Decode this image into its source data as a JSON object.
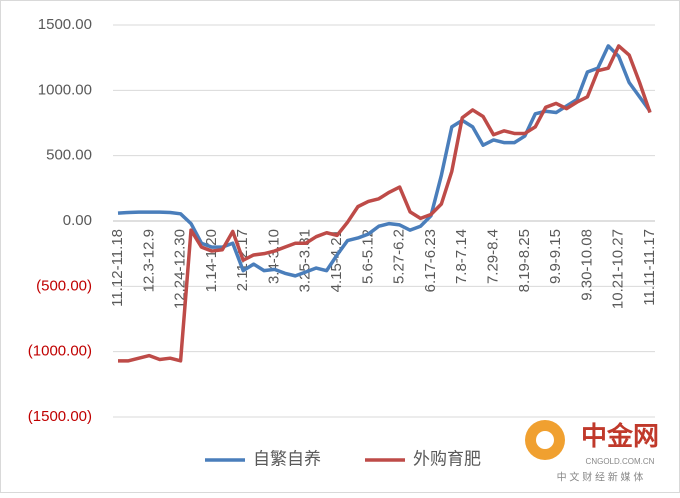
{
  "chart_data": {
    "type": "line",
    "categories": [
      "11.12-11.18",
      null,
      null,
      "12.3-12.9",
      null,
      null,
      "12.24-12.30",
      null,
      null,
      "1.14-1.20",
      null,
      null,
      "2.11-2.17",
      null,
      null,
      "3.4-3.10",
      null,
      null,
      "3.25-3.31",
      null,
      null,
      "4.15-4.21",
      null,
      null,
      "5.6-5.12",
      null,
      null,
      "5.27-6.2",
      null,
      null,
      "6.17-6.23",
      null,
      null,
      "7.8-7.14",
      null,
      null,
      "7.29-8.4",
      null,
      null,
      "8.19-8.25",
      null,
      null,
      "9.9-9.15",
      null,
      null,
      "9.30-10.08",
      null,
      null,
      "10.21-10.27",
      null,
      null,
      "11.11-11.17"
    ],
    "series": [
      {
        "name": "自繁自养",
        "color": "#4a7ebb",
        "values": [
          60,
          65,
          68,
          68,
          68,
          65,
          55,
          -20,
          -170,
          -200,
          -200,
          -170,
          -380,
          -330,
          -380,
          -370,
          -400,
          -420,
          -390,
          -360,
          -380,
          -260,
          -150,
          -130,
          -100,
          -40,
          -20,
          -30,
          -70,
          -40,
          40,
          350,
          720,
          770,
          720,
          580,
          620,
          600,
          600,
          650,
          820,
          840,
          830,
          880,
          930,
          1140,
          1170,
          1340,
          1260,
          1060,
          950,
          840
        ]
      },
      {
        "name": "外购育肥",
        "color": "#be4b48",
        "values": [
          -1070,
          -1070,
          -1050,
          -1030,
          -1060,
          -1050,
          -1070,
          -70,
          -200,
          -230,
          -220,
          -80,
          -300,
          -260,
          -250,
          -230,
          -200,
          -170,
          -170,
          -120,
          -90,
          -110,
          -10,
          110,
          150,
          170,
          220,
          260,
          70,
          20,
          50,
          130,
          380,
          790,
          850,
          800,
          660,
          690,
          670,
          670,
          720,
          870,
          900,
          860,
          910,
          950,
          1150,
          1170,
          1340,
          1270,
          1060,
          830
        ]
      }
    ],
    "ylim": [
      -1500,
      1500
    ],
    "yticks": [
      {
        "value": -1500,
        "label": "(1500.00)"
      },
      {
        "value": -1000,
        "label": "(1000.00)"
      },
      {
        "value": -500,
        "label": "(500.00)"
      },
      {
        "value": 0,
        "label": "0.00"
      },
      {
        "value": 500,
        "label": "500.00"
      },
      {
        "value": 1000,
        "label": "1000.00"
      },
      {
        "value": 1500,
        "label": "1500.00"
      }
    ],
    "grid": true,
    "negative_tick_color": "#c00000",
    "legend_position": "bottom"
  },
  "watermark": {
    "brand": "中金网",
    "domain": "CNGOLD.COM.CN",
    "slogan": "中 文 财 经 新 媒 体"
  }
}
